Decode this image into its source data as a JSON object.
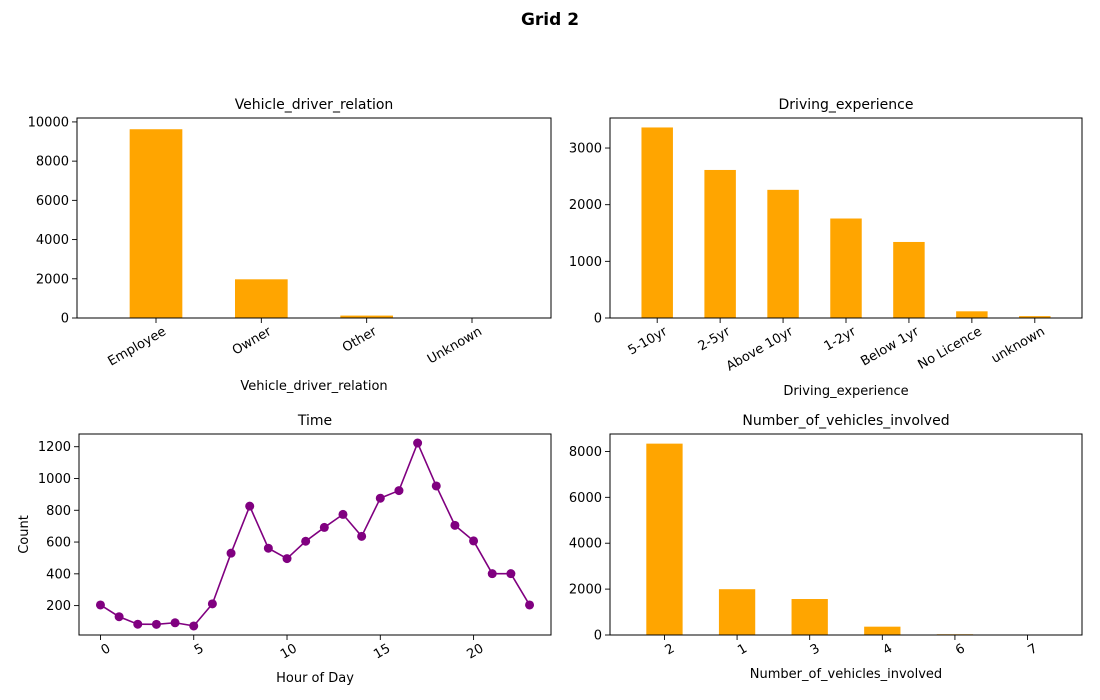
{
  "figure_title": "Grid 2",
  "chart_data": [
    {
      "type": "bar",
      "title": "Vehicle_driver_relation",
      "xlabel": "Vehicle_driver_relation",
      "ylabel": "",
      "categories": [
        "Employee",
        "Owner",
        "Other",
        "Unknown"
      ],
      "values": [
        9627,
        1973,
        123,
        14
      ],
      "ylim": [
        0,
        10200
      ],
      "yticks": [
        0,
        2000,
        4000,
        6000,
        8000,
        10000
      ],
      "color": "#ffa500"
    },
    {
      "type": "bar",
      "title": "Driving_experience",
      "xlabel": "Driving_experience",
      "ylabel": "",
      "categories": [
        "5-10yr",
        "2-5yr",
        "Above 10yr",
        "1-2yr",
        "Below 1yr",
        "No Licence",
        "unknown"
      ],
      "values": [
        3363,
        2613,
        2262,
        1756,
        1342,
        118,
        33
      ],
      "ylim": [
        0,
        3530
      ],
      "yticks": [
        0,
        1000,
        2000,
        3000
      ],
      "color": "#ffa500"
    },
    {
      "type": "line",
      "title": "Time",
      "xlabel": "Hour of Day",
      "ylabel": "Count",
      "x": [
        0,
        1,
        2,
        3,
        4,
        5,
        6,
        7,
        8,
        9,
        10,
        11,
        12,
        13,
        14,
        15,
        16,
        17,
        18,
        19,
        20,
        21,
        22,
        23
      ],
      "values": [
        204,
        130,
        83,
        82,
        92,
        72,
        211,
        530,
        826,
        561,
        496,
        605,
        692,
        774,
        636,
        876,
        924,
        1223,
        953,
        705,
        607,
        401,
        401,
        204
      ],
      "xlim": [
        -1.15,
        24.15
      ],
      "ylim": [
        15,
        1280
      ],
      "xticks": [
        0,
        5,
        10,
        15,
        20
      ],
      "yticks": [
        200,
        400,
        600,
        800,
        1000,
        1200
      ],
      "color": "#800080"
    },
    {
      "type": "bar",
      "title": "Number_of_vehicles_involved",
      "xlabel": "Number_of_vehicles_involved",
      "ylabel": "",
      "categories": [
        "2",
        "1",
        "3",
        "4",
        "6",
        "7"
      ],
      "values": [
        8340,
        1996,
        1568,
        363,
        32,
        1
      ],
      "ylim": [
        0,
        8760
      ],
      "yticks": [
        0,
        2000,
        4000,
        6000,
        8000
      ],
      "color": "#ffa500"
    }
  ]
}
